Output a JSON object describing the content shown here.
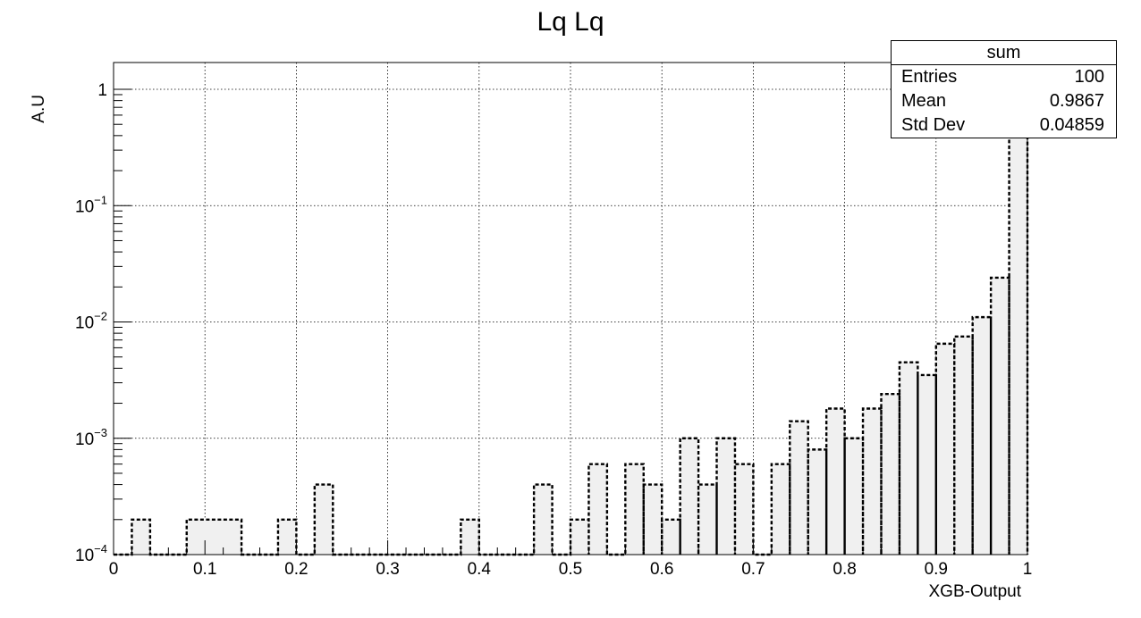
{
  "chart_data": {
    "type": "histogram",
    "title": "Lq Lq",
    "xlabel": "XGB-Output",
    "ylabel": "A.U",
    "xlim": [
      0,
      1
    ],
    "ylim": [
      0.0001,
      1.7
    ],
    "yscale": "log",
    "grid": true,
    "bin_width": 0.02,
    "x_ticks": [
      "0",
      "0.1",
      "0.2",
      "0.3",
      "0.4",
      "0.5",
      "0.6",
      "0.7",
      "0.8",
      "0.9",
      "1"
    ],
    "y_ticks": [
      {
        "value": 0.0001,
        "base": "10",
        "exp": "−4"
      },
      {
        "value": 0.001,
        "base": "10",
        "exp": "−3"
      },
      {
        "value": 0.01,
        "base": "10",
        "exp": "−2"
      },
      {
        "value": 0.1,
        "base": "10",
        "exp": "−1"
      },
      {
        "value": 1,
        "base": "1",
        "exp": ""
      }
    ],
    "bins": [
      {
        "x0": 0.02,
        "x1": 0.04,
        "y": 0.0002
      },
      {
        "x0": 0.08,
        "x1": 0.14,
        "y": 0.0002
      },
      {
        "x0": 0.18,
        "x1": 0.2,
        "y": 0.0002
      },
      {
        "x0": 0.22,
        "x1": 0.24,
        "y": 0.0004
      },
      {
        "x0": 0.38,
        "x1": 0.4,
        "y": 0.0002
      },
      {
        "x0": 0.46,
        "x1": 0.48,
        "y": 0.0004
      },
      {
        "x0": 0.5,
        "x1": 0.52,
        "y": 0.0002
      },
      {
        "x0": 0.52,
        "x1": 0.54,
        "y": 0.0006
      },
      {
        "x0": 0.56,
        "x1": 0.58,
        "y": 0.0006
      },
      {
        "x0": 0.58,
        "x1": 0.6,
        "y": 0.0004
      },
      {
        "x0": 0.6,
        "x1": 0.62,
        "y": 0.0002
      },
      {
        "x0": 0.62,
        "x1": 0.64,
        "y": 0.001
      },
      {
        "x0": 0.64,
        "x1": 0.66,
        "y": 0.0004
      },
      {
        "x0": 0.66,
        "x1": 0.68,
        "y": 0.001
      },
      {
        "x0": 0.68,
        "x1": 0.7,
        "y": 0.0006
      },
      {
        "x0": 0.72,
        "x1": 0.74,
        "y": 0.0006
      },
      {
        "x0": 0.74,
        "x1": 0.76,
        "y": 0.0014
      },
      {
        "x0": 0.76,
        "x1": 0.78,
        "y": 0.0008
      },
      {
        "x0": 0.78,
        "x1": 0.8,
        "y": 0.0018
      },
      {
        "x0": 0.8,
        "x1": 0.82,
        "y": 0.001
      },
      {
        "x0": 0.82,
        "x1": 0.84,
        "y": 0.0018
      },
      {
        "x0": 0.84,
        "x1": 0.86,
        "y": 0.0024
      },
      {
        "x0": 0.86,
        "x1": 0.88,
        "y": 0.0045
      },
      {
        "x0": 0.88,
        "x1": 0.9,
        "y": 0.0035
      },
      {
        "x0": 0.9,
        "x1": 0.92,
        "y": 0.0065
      },
      {
        "x0": 0.92,
        "x1": 0.94,
        "y": 0.0075
      },
      {
        "x0": 0.94,
        "x1": 0.96,
        "y": 0.011
      },
      {
        "x0": 0.96,
        "x1": 0.98,
        "y": 0.024
      },
      {
        "x0": 0.98,
        "x1": 1.0,
        "y": 0.92
      }
    ],
    "colors": {
      "fill": "#f0f0f0",
      "line": "#000000",
      "grid": "#000000"
    }
  },
  "stats_box": {
    "title": "sum",
    "entries_label": "Entries",
    "entries_value": "100",
    "mean_label": "Mean",
    "mean_value": "0.9867",
    "std_label": "Std Dev",
    "std_value": "0.04859"
  }
}
